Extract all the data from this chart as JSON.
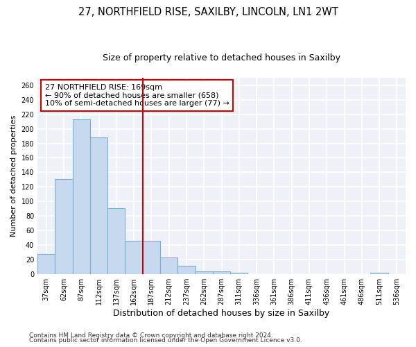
{
  "title1": "27, NORTHFIELD RISE, SAXILBY, LINCOLN, LN1 2WT",
  "title2": "Size of property relative to detached houses in Saxilby",
  "xlabel": "Distribution of detached houses by size in Saxilby",
  "ylabel": "Number of detached properties",
  "bar_color": "#c6d9ee",
  "bar_edge_color": "#7aafd4",
  "vline_color": "#cc0000",
  "vline_x": 5.5,
  "annotation_text": "27 NORTHFIELD RISE: 169sqm\n← 90% of detached houses are smaller (658)\n10% of semi-detached houses are larger (77) →",
  "annotation_box_color": "white",
  "annotation_box_edge_color": "#cc0000",
  "categories": [
    "37sqm",
    "62sqm",
    "87sqm",
    "112sqm",
    "137sqm",
    "162sqm",
    "187sqm",
    "212sqm",
    "237sqm",
    "262sqm",
    "287sqm",
    "311sqm",
    "336sqm",
    "361sqm",
    "386sqm",
    "411sqm",
    "436sqm",
    "461sqm",
    "486sqm",
    "511sqm",
    "536sqm"
  ],
  "values": [
    27,
    131,
    213,
    188,
    91,
    46,
    46,
    23,
    11,
    4,
    4,
    2,
    0,
    0,
    0,
    0,
    0,
    0,
    0,
    2,
    0
  ],
  "ylim": [
    0,
    270
  ],
  "yticks": [
    0,
    20,
    40,
    60,
    80,
    100,
    120,
    140,
    160,
    180,
    200,
    220,
    240,
    260
  ],
  "footer1": "Contains HM Land Registry data © Crown copyright and database right 2024.",
  "footer2": "Contains public sector information licensed under the Open Government Licence v3.0.",
  "background_color": "#eef2f8",
  "grid_color": "#ffffff",
  "title1_fontsize": 10.5,
  "title2_fontsize": 9,
  "ylabel_fontsize": 8,
  "xlabel_fontsize": 9,
  "tick_fontsize": 7,
  "annot_fontsize": 8,
  "footer_fontsize": 6.5
}
